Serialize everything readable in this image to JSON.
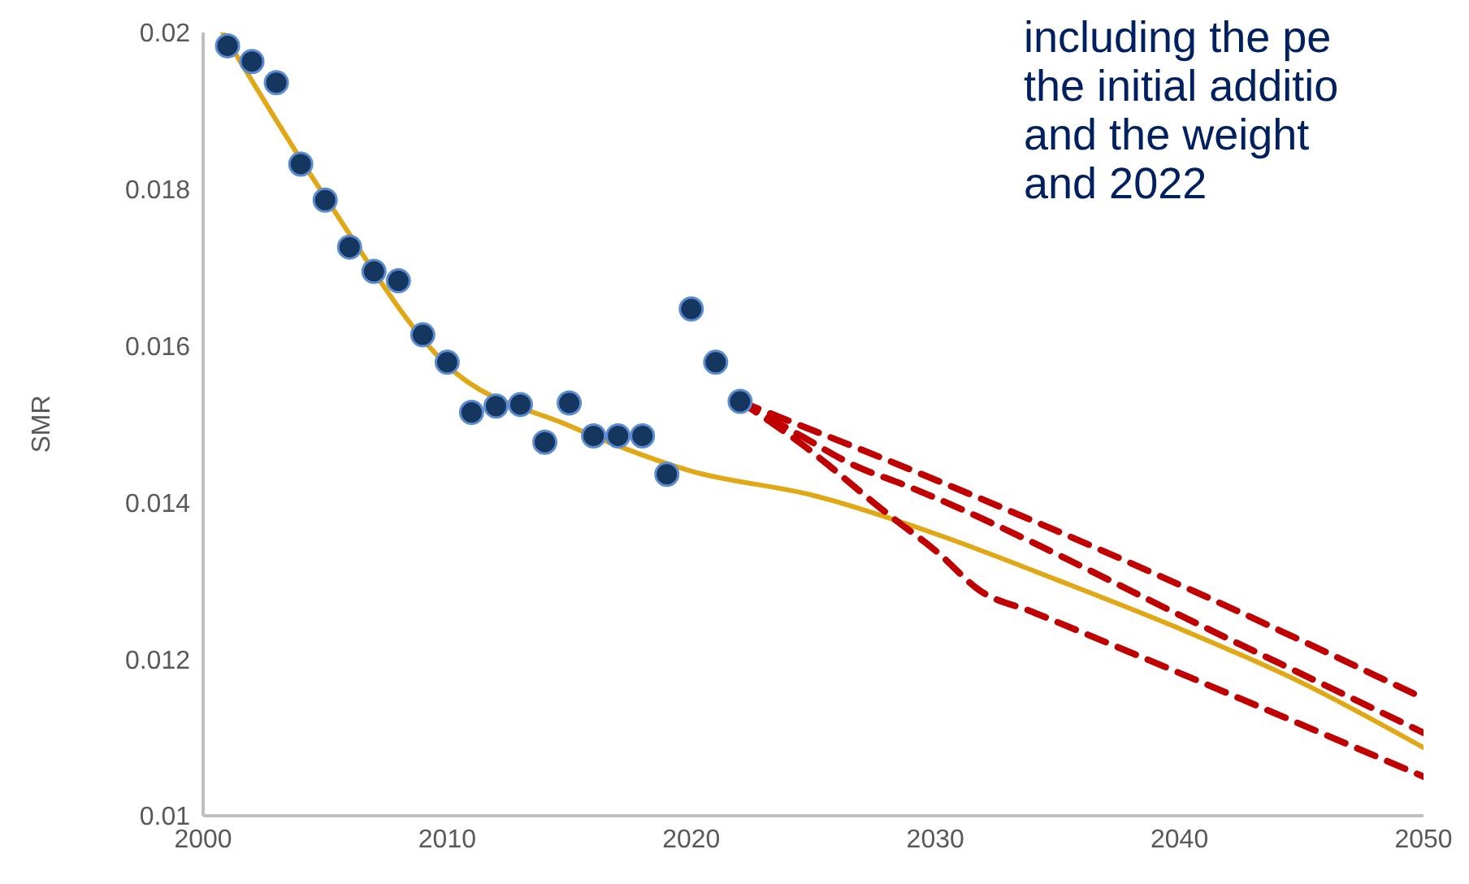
{
  "chart_data": {
    "type": "scatter",
    "ylabel": "SMR",
    "annotations": [
      "including the pe\nthe initial additio\nand the weight\nand 2022"
    ],
    "xlim": [
      2000,
      2050
    ],
    "xticks": [
      2000,
      2010,
      2020,
      2030,
      2040,
      2050
    ],
    "ylim": [
      0.01,
      0.02
    ],
    "yticks": [
      0.01,
      0.012,
      0.014,
      0.016,
      0.018,
      0.02
    ],
    "grid": false,
    "legend": false,
    "series": [
      {
        "marker": "circle",
        "color": "#15375f",
        "x": [
          2001,
          2002,
          2003,
          2004,
          2005,
          2006,
          2007,
          2008,
          2009,
          2010,
          2011,
          2012,
          2013,
          2014,
          2015,
          2016,
          2017,
          2018,
          2019,
          2020,
          2021,
          2022
        ],
        "values": [
          0.01983,
          0.01963,
          0.01936,
          0.01832,
          0.01786,
          0.01726,
          0.01695,
          0.01683,
          0.01614,
          0.01579,
          0.01515,
          0.01523,
          0.01525,
          0.01477,
          0.01527,
          0.01485,
          0.01485,
          0.01485,
          0.01436,
          0.01647,
          0.01579,
          0.01529
        ]
      },
      {
        "type": "line",
        "marker": "none",
        "line_style": "solid",
        "color": "#e0a816",
        "x": [
          2000.8,
          2005,
          2010,
          2015,
          2020,
          2025,
          2030,
          2035,
          2040,
          2045,
          2050
        ],
        "values": [
          0.02,
          0.0179,
          0.01575,
          0.01498,
          0.0144,
          0.01409,
          0.0136,
          0.01301,
          0.01239,
          0.0117,
          0.01087
        ]
      },
      {
        "type": "line",
        "marker": "none",
        "line_style": "dashed",
        "color": "#c00000",
        "x": [
          2022,
          2024.5,
          2027,
          2040.5,
          2050
        ],
        "values": [
          0.01529,
          0.01498,
          0.01467,
          0.01288,
          0.0115
        ]
      },
      {
        "type": "line",
        "marker": "none",
        "line_style": "dashed",
        "color": "#c00000",
        "x": [
          2022,
          2024.5,
          2026.5,
          2029,
          2042,
          2050
        ],
        "values": [
          0.01529,
          0.01485,
          0.0145,
          0.01419,
          0.01226,
          0.01106
        ]
      },
      {
        "type": "line",
        "marker": "none",
        "line_style": "dashed",
        "color": "#c00000",
        "x": [
          2022,
          2024.5,
          2028.1,
          2030.1,
          2031.8,
          2034,
          2050
        ],
        "values": [
          0.01529,
          0.01475,
          0.01384,
          0.01336,
          0.01288,
          0.0126,
          0.0105
        ]
      }
    ]
  }
}
